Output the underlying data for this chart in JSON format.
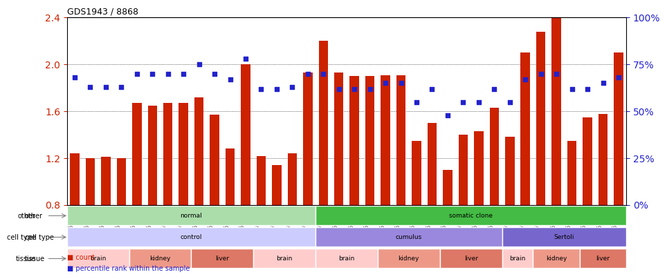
{
  "title": "GDS1943 / 8868",
  "samples": [
    "GSM69825",
    "GSM69826",
    "GSM69827",
    "GSM69828",
    "GSM69801",
    "GSM69802",
    "GSM69803",
    "GSM69804",
    "GSM69813",
    "GSM69814",
    "GSM69815",
    "GSM69816",
    "GSM69833",
    "GSM69834",
    "GSM69835",
    "GSM69836",
    "GSM69809",
    "GSM69810",
    "GSM69811",
    "GSM69812",
    "GSM69821",
    "GSM69822",
    "GSM69823",
    "GSM69824",
    "GSM69829",
    "GSM69830",
    "GSM69831",
    "GSM69832",
    "GSM69805",
    "GSM69806",
    "GSM69807",
    "GSM69808",
    "GSM69817",
    "GSM69818",
    "GSM69819",
    "GSM69820"
  ],
  "bar_values": [
    1.24,
    1.2,
    1.21,
    1.2,
    1.67,
    1.65,
    1.67,
    1.67,
    1.72,
    1.57,
    1.28,
    2.0,
    1.22,
    1.14,
    1.24,
    1.93,
    2.2,
    1.93,
    1.9,
    1.9,
    1.91,
    1.91,
    1.35,
    1.5,
    1.1,
    1.4,
    1.43,
    1.63,
    1.38,
    2.1,
    2.28,
    2.4,
    1.35,
    1.55,
    1.58,
    2.1
  ],
  "pct_values": [
    68,
    63,
    63,
    63,
    70,
    70,
    70,
    70,
    75,
    70,
    67,
    78,
    62,
    62,
    63,
    70,
    70,
    62,
    62,
    62,
    65,
    65,
    55,
    62,
    48,
    55,
    55,
    62,
    55,
    67,
    70,
    70,
    62,
    62,
    65,
    68
  ],
  "ylim_left": [
    0.8,
    2.4
  ],
  "ylim_right": [
    0,
    100
  ],
  "yticks_left": [
    0.8,
    1.2,
    1.6,
    2.0,
    2.4
  ],
  "yticks_right": [
    0,
    25,
    50,
    75,
    100
  ],
  "bar_color": "#cc2200",
  "pct_color": "#2222cc",
  "bg_color": "#ffffff",
  "grid_color": "#000000",
  "annotation_rows": [
    {
      "label": "other",
      "segments": [
        {
          "text": "normal",
          "start": 0,
          "end": 16,
          "color": "#aaddaa"
        },
        {
          "text": "somatic clone",
          "start": 16,
          "end": 36,
          "color": "#44bb44"
        }
      ]
    },
    {
      "label": "cell type",
      "segments": [
        {
          "text": "control",
          "start": 0,
          "end": 16,
          "color": "#ccccff"
        },
        {
          "text": "cumulus",
          "start": 16,
          "end": 28,
          "color": "#9988dd"
        },
        {
          "text": "Sertoli",
          "start": 28,
          "end": 36,
          "color": "#7766cc"
        }
      ]
    },
    {
      "label": "tissue",
      "segments": [
        {
          "text": "brain",
          "start": 0,
          "end": 4,
          "color": "#ffcccc"
        },
        {
          "text": "kidney",
          "start": 4,
          "end": 8,
          "color": "#ee9988"
        },
        {
          "text": "liver",
          "start": 8,
          "end": 12,
          "color": "#dd7766"
        },
        {
          "text": "brain",
          "start": 12,
          "end": 16,
          "color": "#ffcccc"
        },
        {
          "text": "brain",
          "start": 16,
          "end": 20,
          "color": "#ffcccc"
        },
        {
          "text": "kidney",
          "start": 20,
          "end": 24,
          "color": "#ee9988"
        },
        {
          "text": "liver",
          "start": 24,
          "end": 28,
          "color": "#dd7766"
        },
        {
          "text": "brain",
          "start": 28,
          "end": 30,
          "color": "#ffcccc"
        },
        {
          "text": "kidney",
          "start": 30,
          "end": 33,
          "color": "#ee9988"
        },
        {
          "text": "liver",
          "start": 33,
          "end": 36,
          "color": "#dd7766"
        }
      ]
    }
  ]
}
